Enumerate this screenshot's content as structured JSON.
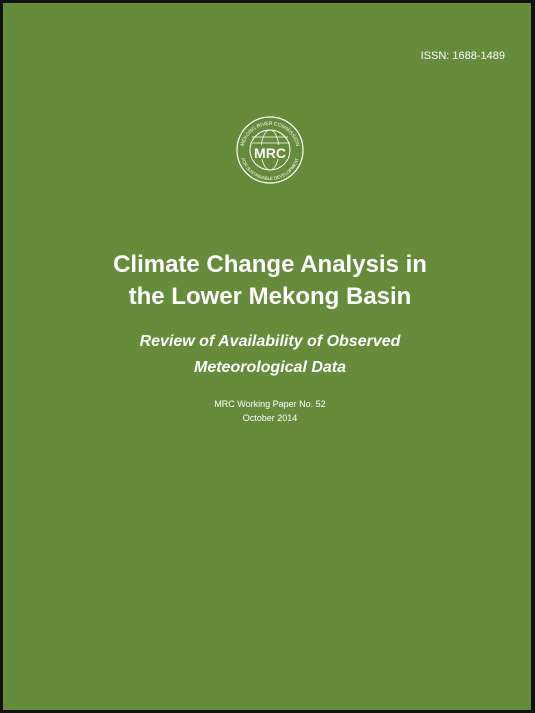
{
  "cover": {
    "issn": "ISSN: 1688-1489",
    "logo": {
      "top_text": "MEKONG RIVER COMMISSION",
      "acronym": "MRC",
      "bottom_text": "FOR SUSTAINABLE DEVELOPMENT"
    },
    "title_lines": [
      "Climate Change Analysis in",
      "the Lower Mekong Basin"
    ],
    "subtitle_lines": [
      "Review of Availability of Observed",
      "Meteorological Data"
    ],
    "series": "MRC Working Paper No.  52",
    "date": "October 2014"
  }
}
